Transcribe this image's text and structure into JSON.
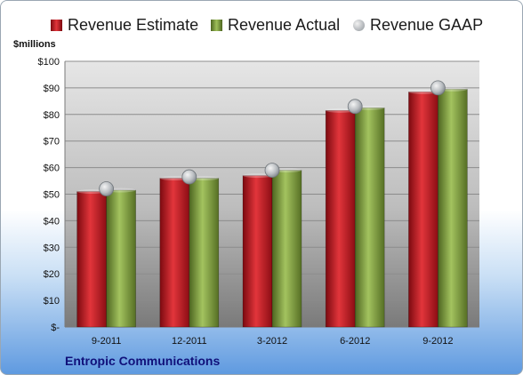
{
  "chart_data": {
    "type": "bar",
    "categories": [
      "9-2011",
      "12-2011",
      "3-2012",
      "6-2012",
      "9-2012"
    ],
    "series": [
      {
        "name": "Revenue Estimate",
        "kind": "bar",
        "values": [
          51,
          56,
          57,
          81.5,
          88.5
        ],
        "color": "#c0141c"
      },
      {
        "name": "Revenue Actual",
        "kind": "bar",
        "values": [
          51.5,
          56,
          59,
          82.5,
          89.5
        ],
        "color": "#7d9b3b"
      },
      {
        "name": "Revenue GAAP",
        "kind": "marker",
        "values": [
          52,
          56.5,
          59,
          83,
          90
        ],
        "color": "#9ea3a8"
      }
    ],
    "ylabel": "$millions",
    "ylim": [
      0,
      100
    ],
    "ytick_labels": [
      "$-",
      "$10",
      "$20",
      "$30",
      "$40",
      "$50",
      "$60",
      "$70",
      "$80",
      "$90",
      "$100"
    ],
    "grid": true,
    "legend_position": "top",
    "footer": "Entropic Communications"
  }
}
